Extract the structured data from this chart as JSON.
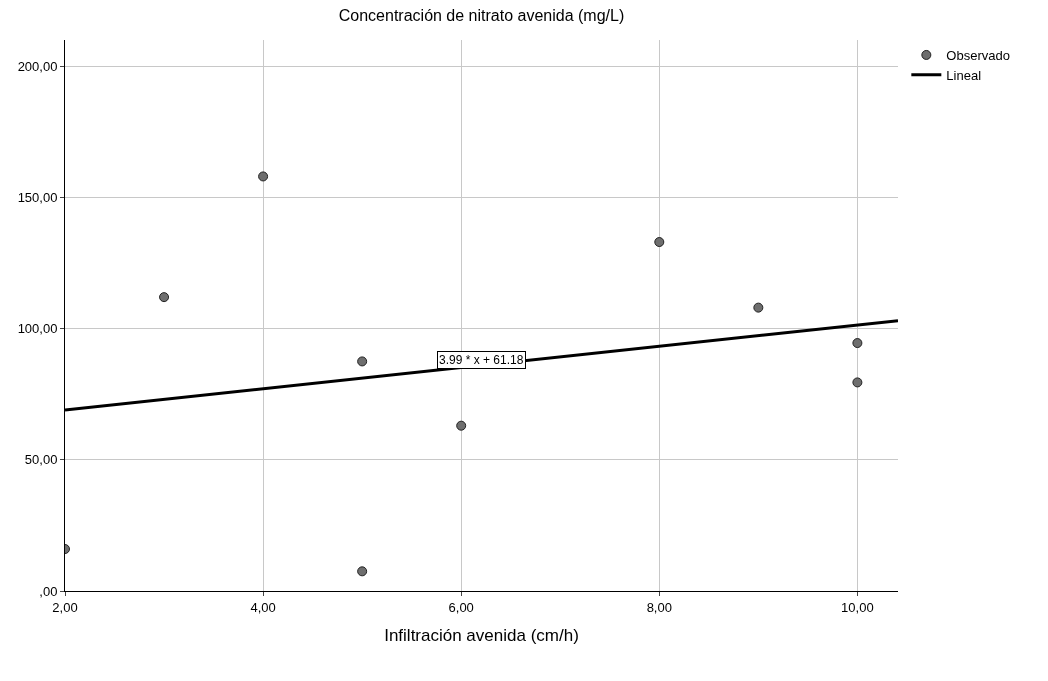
{
  "chart_data": {
    "type": "scatter",
    "title": "Concentración de nitrato avenida (mg/L)",
    "xlabel": "Infiltración avenida (cm/h)",
    "x": [
      2,
      3,
      4,
      5,
      5,
      6,
      8,
      9,
      10,
      10
    ],
    "series": [
      {
        "name": "Observado",
        "color": "#6e6e6e",
        "marker": "circle",
        "values": [
          16,
          112,
          158,
          87.5,
          7.5,
          63,
          133,
          108,
          94.5,
          79.5
        ]
      },
      {
        "name": "Lineal",
        "type": "line",
        "color": "#000000",
        "marker": "none",
        "line_style": "solid",
        "x": [
          2,
          10.41
        ],
        "values": [
          69,
          103
        ]
      }
    ],
    "annotations": [
      "3.99 * x + 61.18"
    ],
    "xlim": [
      2,
      10.41
    ],
    "ylim": [
      0,
      210
    ],
    "xticks": [
      {
        "value": 2,
        "label": "2,00"
      },
      {
        "value": 4,
        "label": "4,00"
      },
      {
        "value": 6,
        "label": "6,00"
      },
      {
        "value": 8,
        "label": "8,00"
      },
      {
        "value": 10,
        "label": "10,00"
      }
    ],
    "yticks": [
      {
        "value": 0,
        "label": ",00"
      },
      {
        "value": 50,
        "label": "50,00"
      },
      {
        "value": 100,
        "label": "100,00"
      },
      {
        "value": 150,
        "label": "150,00"
      },
      {
        "value": 200,
        "label": "200,00"
      }
    ],
    "grid": true,
    "legend": "top right"
  }
}
